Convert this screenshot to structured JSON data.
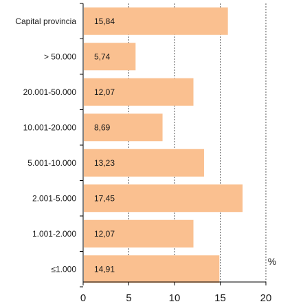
{
  "chart_data": {
    "type": "bar",
    "orientation": "horizontal",
    "categories": [
      "Capital provincia",
      "> 50.000",
      "20.001-50.000",
      "10.001-20.000",
      "5.001-10.000",
      "2.001-5.000",
      "1.001-2.000",
      "≤1.000"
    ],
    "values": [
      15.84,
      5.74,
      12.07,
      8.69,
      13.23,
      17.45,
      12.07,
      14.91
    ],
    "value_labels": [
      "15,84",
      "5,74",
      "12,07",
      "8,69",
      "13,23",
      "17,45",
      "12,07",
      "14,91"
    ],
    "xlim": [
      0,
      20
    ],
    "xticks": [
      0,
      5,
      10,
      15,
      20
    ],
    "x_unit": "%",
    "grid": "vertical dashed at major ticks",
    "colors": {
      "bar": "#FAC090",
      "grid": "#555555",
      "axis": "#000000",
      "text": "#1a1a1a"
    }
  }
}
